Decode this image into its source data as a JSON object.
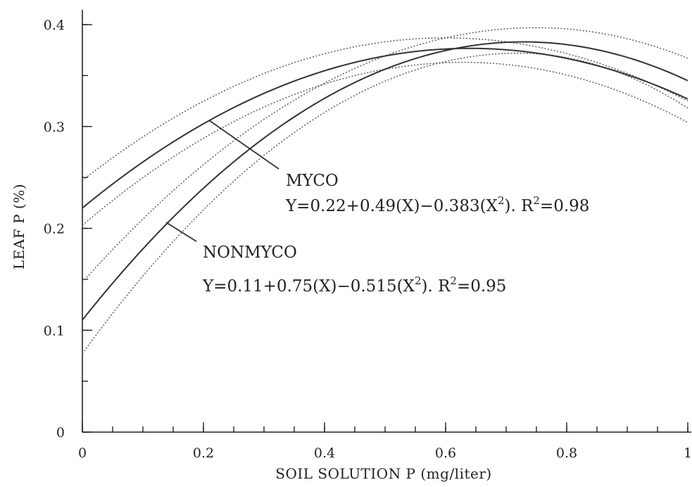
{
  "chart_data": {
    "type": "line",
    "xlabel": "SOIL SOLUTION P (mg/liter)",
    "ylabel": "LEAF P (%)",
    "xlim": [
      0,
      1
    ],
    "ylim": [
      0,
      0.4
    ],
    "x_ticks": [
      {
        "value": 0,
        "label": "0"
      },
      {
        "value": 0.2,
        "label": "0.2"
      },
      {
        "value": 0.4,
        "label": "0.4"
      },
      {
        "value": 0.6,
        "label": "0.6"
      },
      {
        "value": 0.8,
        "label": "0.8"
      },
      {
        "value": 1,
        "label": "1"
      }
    ],
    "x_minor_step": 0.05,
    "y_ticks": [
      {
        "value": 0,
        "label": "0"
      },
      {
        "value": 0.1,
        "label": "0.1"
      },
      {
        "value": 0.2,
        "label": "0.2"
      },
      {
        "value": 0.3,
        "label": "0.3"
      },
      {
        "value": 0.4,
        "label": "0.4"
      }
    ],
    "y_minor_step": 0.05,
    "grid": false,
    "legend": "none",
    "series": [
      {
        "name": "MYCO",
        "equation": "Y=0.22+0.49(X)−0.383(X",
        "equation_tail": "). R",
        "r2": "=0.98",
        "coef": [
          0.22,
          0.49,
          -0.383
        ],
        "line_style": "solid",
        "confidence_band": {
          "upper": {
            "y0": 0.247,
            "peak_x": 0.6,
            "peak_y": 0.387,
            "y1": 0.325
          },
          "lower": {
            "y0": 0.203,
            "peak_x": 0.63,
            "peak_y": 0.363,
            "y1": 0.304
          }
        }
      },
      {
        "name": "NONMYCO",
        "equation": "Y=0.11+0.75(X)−0.515(X",
        "equation_tail": "). R",
        "r2": "=0.95",
        "coef": [
          0.11,
          0.75,
          -0.515
        ],
        "line_style": "solid",
        "confidence_band": {
          "upper": {
            "y0": 0.147,
            "peak_x": 0.75,
            "peak_y": 0.397,
            "y1": 0.367
          },
          "lower": {
            "y0": 0.077,
            "peak_x": 0.72,
            "peak_y": 0.372,
            "y1": 0.318
          }
        }
      }
    ],
    "annotations": {
      "superscript": "2"
    }
  }
}
